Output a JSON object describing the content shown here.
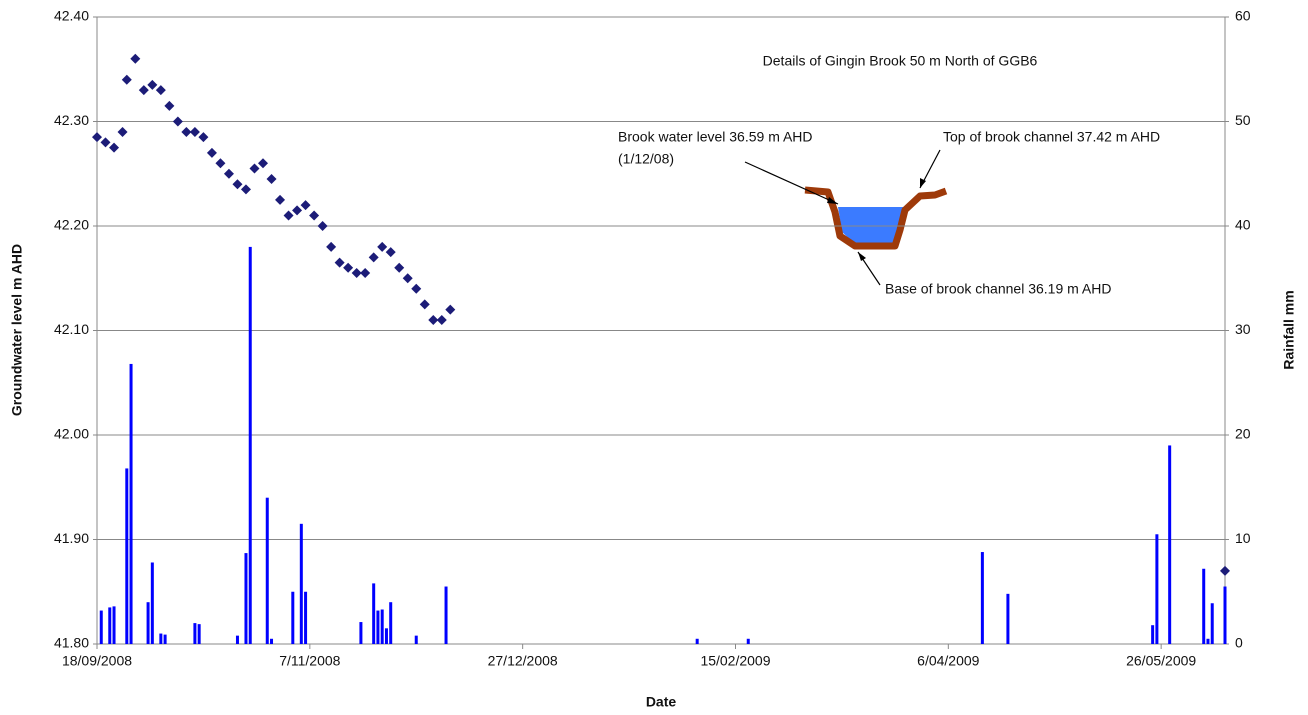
{
  "chart_data": {
    "type": "combo",
    "title": "Details of Gingin Brook 50 m North of GGB6",
    "annotations": [
      "Brook water level 36.59 m AHD",
      "(1/12/08)",
      "Top of brook channel 37.42 m AHD",
      "Base of brook channel 36.19 m AHD"
    ],
    "x_label": "Date",
    "y_label": "Groundwater level m AHD",
    "y2_label": "Rainfall mm",
    "xlim": [
      "2008-09-18",
      "2009-06-10"
    ],
    "xticks": [
      {
        "value": "2008-09-18",
        "label": "18/09/2008"
      },
      {
        "value": "2008-11-07",
        "label": "7/11/2008"
      },
      {
        "value": "2008-12-27",
        "label": "27/12/2008"
      },
      {
        "value": "2009-02-15",
        "label": "15/02/2009"
      },
      {
        "value": "2009-04-06",
        "label": "6/04/2009"
      },
      {
        "value": "2009-05-26",
        "label": "26/05/2009"
      }
    ],
    "ylim": [
      41.8,
      42.4
    ],
    "yticks": [
      {
        "value": 41.8,
        "label": "41.80"
      },
      {
        "value": 41.9,
        "label": "41.90"
      },
      {
        "value": 42.0,
        "label": "42.00"
      },
      {
        "value": 42.1,
        "label": "42.10"
      },
      {
        "value": 42.2,
        "label": "42.20"
      },
      {
        "value": 42.3,
        "label": "42.30"
      },
      {
        "value": 42.4,
        "label": "42.40"
      }
    ],
    "y2lim": [
      0,
      60
    ],
    "y2ticks": [
      0,
      10,
      20,
      30,
      40,
      50,
      60
    ],
    "grid": true,
    "series": [
      {
        "type": "scatter",
        "color": "#1c1c78",
        "axis": "y",
        "x": [
          "2008-09-18",
          "2008-09-20",
          "2008-09-22",
          "2008-09-24",
          "2008-09-25",
          "2008-09-27",
          "2008-09-29",
          "2008-10-01",
          "2008-10-03",
          "2008-10-05",
          "2008-10-07",
          "2008-10-09",
          "2008-10-11",
          "2008-10-13",
          "2008-10-15",
          "2008-10-17",
          "2008-10-19",
          "2008-10-21",
          "2008-10-23",
          "2008-10-25",
          "2008-10-27",
          "2008-10-29",
          "2008-10-31",
          "2008-11-02",
          "2008-11-04",
          "2008-11-06",
          "2008-11-08",
          "2008-11-10",
          "2008-11-12",
          "2008-11-14",
          "2008-11-16",
          "2008-11-18",
          "2008-11-20",
          "2008-11-22",
          "2008-11-24",
          "2008-11-26",
          "2008-11-28",
          "2008-11-30",
          "2008-12-02",
          "2008-12-04",
          "2008-12-06",
          "2008-12-08",
          "2008-12-10",
          "2009-06-10"
        ],
        "values": [
          42.285,
          42.28,
          42.275,
          42.29,
          42.34,
          42.36,
          42.33,
          42.335,
          42.33,
          42.315,
          42.3,
          42.29,
          42.29,
          42.285,
          42.27,
          42.26,
          42.25,
          42.24,
          42.235,
          42.255,
          42.26,
          42.245,
          42.225,
          42.21,
          42.215,
          42.22,
          42.21,
          42.2,
          42.18,
          42.165,
          42.16,
          42.155,
          42.155,
          42.17,
          42.18,
          42.175,
          42.16,
          42.15,
          42.14,
          42.125,
          42.11,
          42.11,
          42.12,
          41.87
        ]
      },
      {
        "type": "bar",
        "color": "#0000ff",
        "axis": "y2",
        "x": [
          "2008-09-19",
          "2008-09-21",
          "2008-09-22",
          "2008-09-25",
          "2008-09-26",
          "2008-09-30",
          "2008-10-01",
          "2008-10-03",
          "2008-10-04",
          "2008-10-11",
          "2008-10-12",
          "2008-10-21",
          "2008-10-23",
          "2008-10-24",
          "2008-10-28",
          "2008-10-29",
          "2008-11-03",
          "2008-11-05",
          "2008-11-06",
          "2008-11-19",
          "2008-11-22",
          "2008-11-23",
          "2008-11-24",
          "2008-11-25",
          "2008-11-26",
          "2008-12-02",
          "2008-12-09",
          "2009-02-06",
          "2009-02-18",
          "2009-04-14",
          "2009-04-20",
          "2009-05-24",
          "2009-05-25",
          "2009-05-28",
          "2009-06-05",
          "2009-06-06",
          "2009-06-07",
          "2009-06-10"
        ],
        "values": [
          3.2,
          3.5,
          3.6,
          16.8,
          26.8,
          4,
          7.8,
          1,
          0.9,
          2,
          1.9,
          0.8,
          8.7,
          38,
          14,
          0.5,
          5,
          11.5,
          5,
          2.1,
          5.8,
          3.2,
          3.3,
          1.5,
          4,
          0.8,
          5.5,
          0.5,
          0.5,
          8.8,
          4.8,
          1.8,
          10.5,
          19,
          7.2,
          0.5,
          3.9,
          5.5
        ]
      }
    ]
  }
}
